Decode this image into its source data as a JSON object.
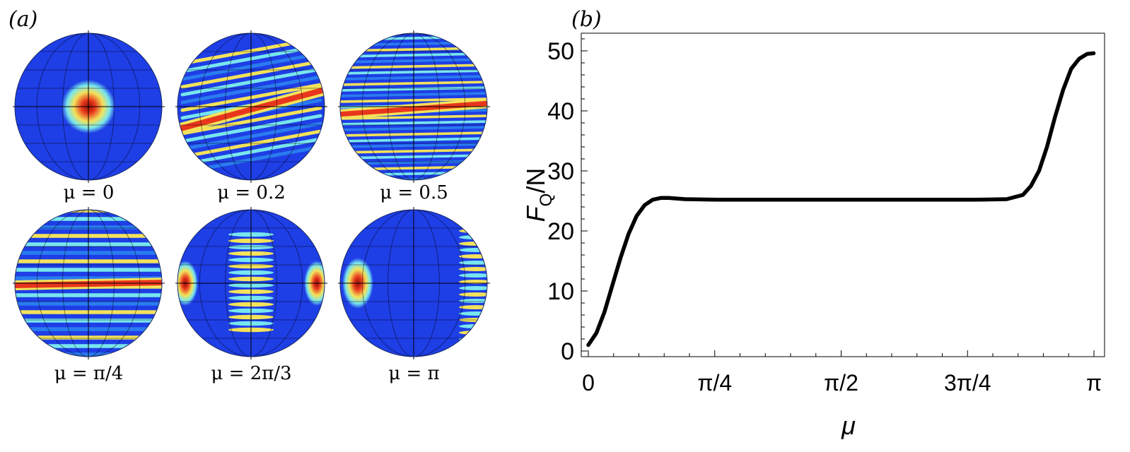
{
  "panel_a": {
    "label": "(a)",
    "spheres": [
      {
        "caption": "μ = 0",
        "pattern": "spot-center"
      },
      {
        "caption": "μ = 0.2",
        "pattern": "tilted-band"
      },
      {
        "caption": "μ = 0.5",
        "pattern": "fringes-dense"
      },
      {
        "caption": "μ = π/4",
        "pattern": "fringes-band"
      },
      {
        "caption": "μ = 2π/3",
        "pattern": "two-spots-fringes"
      },
      {
        "caption": "μ = π",
        "pattern": "spot-left-edge-fringes"
      }
    ],
    "colors": {
      "background": "#1e3ee6",
      "low": "#2a7cf0",
      "mid": "#78e6ee",
      "high": "#f3e25a",
      "peak": "#e8361c",
      "core": "#8e1208"
    }
  },
  "panel_b": {
    "label": "(b)",
    "chart_data": {
      "type": "line",
      "xlabel": "μ",
      "ylabel": "F_Q/N",
      "xlim": [
        0,
        3.1416
      ],
      "ylim": [
        0,
        52
      ],
      "xticks": [
        {
          "value": 0,
          "label": "0"
        },
        {
          "value": 0.7854,
          "label": "π/4"
        },
        {
          "value": 1.5708,
          "label": "π/2"
        },
        {
          "value": 2.3562,
          "label": "3π/4"
        },
        {
          "value": 3.1416,
          "label": "π"
        }
      ],
      "yticks": [
        0,
        10,
        20,
        30,
        40,
        50
      ],
      "series": [
        {
          "color": "#000000",
          "x": [
            0.0,
            0.05,
            0.1,
            0.15,
            0.2,
            0.25,
            0.3,
            0.35,
            0.4,
            0.45,
            0.5,
            0.6,
            0.8,
            1.2,
            1.6,
            2.0,
            2.4,
            2.6,
            2.7,
            2.75,
            2.8,
            2.85,
            2.9,
            2.95,
            3.0,
            3.05,
            3.1,
            3.14
          ],
          "y": [
            1,
            3,
            6.5,
            11,
            15.5,
            19.5,
            22.5,
            24.3,
            25.2,
            25.5,
            25.5,
            25.3,
            25.2,
            25.2,
            25.2,
            25.2,
            25.2,
            25.3,
            26,
            27.5,
            30,
            34,
            39,
            43.5,
            47,
            48.7,
            49.5,
            49.6
          ]
        }
      ]
    }
  }
}
